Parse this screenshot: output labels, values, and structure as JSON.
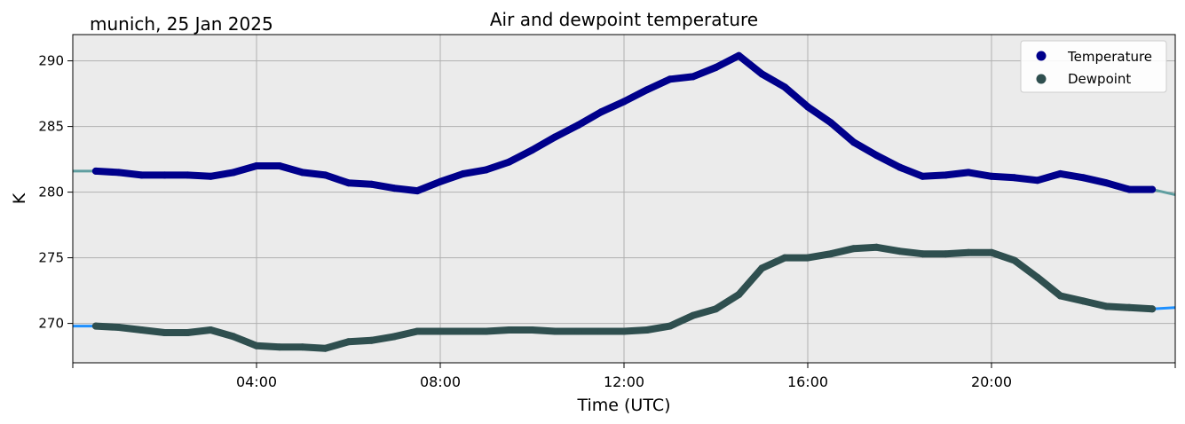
{
  "chart_data": {
    "type": "line",
    "title": "Air and dewpoint temperature",
    "location_label": "munich, 25 Jan 2025",
    "xlabel": "Time (UTC)",
    "ylabel": "K",
    "xlim": [
      "00:00",
      "24:00"
    ],
    "ylim": [
      267,
      292
    ],
    "x_ticks": [
      "04:00",
      "08:00",
      "12:00",
      "16:00",
      "20:00"
    ],
    "y_ticks": [
      270,
      275,
      280,
      285,
      290
    ],
    "grid": true,
    "legend_position": "top-right",
    "colors": {
      "plot_background": "#ebebeb",
      "grid": "#b0b0b0",
      "temperature": "#00008b",
      "dewpoint": "#2f4f4f",
      "temperature_raw": "#5f9ea0",
      "dewpoint_raw": "#1e90ff"
    },
    "series": [
      {
        "name": "Temperature",
        "x": [
          "00:00",
          "00:30",
          "01:00",
          "01:30",
          "02:00",
          "02:30",
          "03:00",
          "03:30",
          "04:00",
          "04:30",
          "05:00",
          "05:30",
          "06:00",
          "06:30",
          "07:00",
          "07:30",
          "08:00",
          "08:30",
          "09:00",
          "09:30",
          "10:00",
          "10:30",
          "11:00",
          "11:30",
          "12:00",
          "12:30",
          "13:00",
          "13:30",
          "14:00",
          "14:30",
          "15:00",
          "15:30",
          "16:00",
          "16:30",
          "17:00",
          "17:30",
          "18:00",
          "18:30",
          "19:00",
          "19:30",
          "20:00",
          "20:30",
          "21:00",
          "21:30",
          "22:00",
          "22:30",
          "23:00",
          "23:30",
          "24:00"
        ],
        "y": [
          281.6,
          281.6,
          281.5,
          281.3,
          281.3,
          281.3,
          281.2,
          281.5,
          282.0,
          282.0,
          281.5,
          281.3,
          280.7,
          280.6,
          280.3,
          280.1,
          280.8,
          281.4,
          281.7,
          282.3,
          283.2,
          284.2,
          285.1,
          286.1,
          286.9,
          287.8,
          288.6,
          288.8,
          289.5,
          290.4,
          289.0,
          288.0,
          286.5,
          285.3,
          283.8,
          282.8,
          281.9,
          281.2,
          281.3,
          281.5,
          281.2,
          281.1,
          280.9,
          281.4,
          281.1,
          280.7,
          280.2,
          280.2,
          279.8
        ]
      },
      {
        "name": "Dewpoint",
        "x": [
          "00:00",
          "00:30",
          "01:00",
          "01:30",
          "02:00",
          "02:30",
          "03:00",
          "03:30",
          "04:00",
          "04:30",
          "05:00",
          "05:30",
          "06:00",
          "06:30",
          "07:00",
          "07:30",
          "08:00",
          "08:30",
          "09:00",
          "09:30",
          "10:00",
          "10:30",
          "11:00",
          "11:30",
          "12:00",
          "12:30",
          "13:00",
          "13:30",
          "14:00",
          "14:30",
          "15:00",
          "15:30",
          "16:00",
          "16:30",
          "17:00",
          "17:30",
          "18:00",
          "18:30",
          "19:00",
          "19:30",
          "20:00",
          "20:30",
          "21:00",
          "21:30",
          "22:00",
          "22:30",
          "23:00",
          "23:30",
          "24:00"
        ],
        "y": [
          269.8,
          269.8,
          269.7,
          269.5,
          269.3,
          269.3,
          269.5,
          269.0,
          268.3,
          268.2,
          268.2,
          268.1,
          268.6,
          268.7,
          269.0,
          269.4,
          269.4,
          269.4,
          269.4,
          269.5,
          269.5,
          269.4,
          269.4,
          269.4,
          269.4,
          269.5,
          269.8,
          270.6,
          271.1,
          272.2,
          274.2,
          275.0,
          275.0,
          275.3,
          275.7,
          275.8,
          275.5,
          275.3,
          275.3,
          275.4,
          275.4,
          274.8,
          273.5,
          272.1,
          271.7,
          271.3,
          271.2,
          271.1,
          271.2
        ]
      }
    ]
  }
}
